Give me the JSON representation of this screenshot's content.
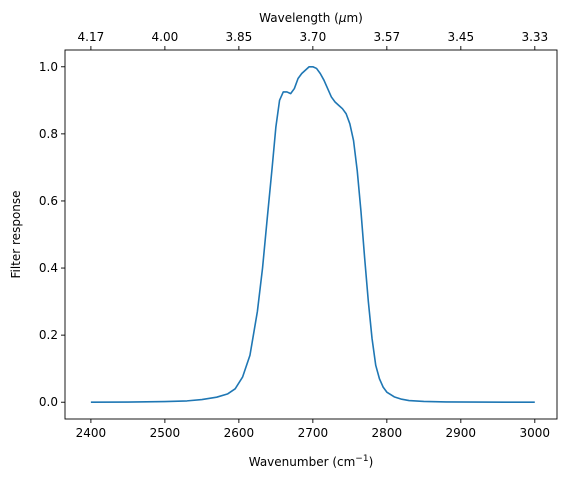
{
  "chart_data": {
    "type": "line",
    "title": "",
    "xlabel": "Wavenumber (cm",
    "xlabel_sup": "−1",
    "xlabel_end": ")",
    "ylabel": "Filter response",
    "secondary_xlabel": "Wavelength (",
    "secondary_xlabel_mu": "μ",
    "secondary_xlabel_end": "m)",
    "xlim": [
      2365,
      3030
    ],
    "ylim": [
      -0.05,
      1.05
    ],
    "grid": false,
    "legend": "none",
    "series_color": "#1f77b4",
    "x_ticks": [
      2400,
      2500,
      2600,
      2700,
      2800,
      2900,
      3000
    ],
    "x_tick_labels": [
      "2400",
      "2500",
      "2600",
      "2700",
      "2800",
      "2900",
      "3000"
    ],
    "y_ticks": [
      0.0,
      0.2,
      0.4,
      0.6,
      0.8,
      1.0
    ],
    "y_tick_labels": [
      "0.0",
      "0.2",
      "0.4",
      "0.6",
      "0.8",
      "1.0"
    ],
    "top_ticks_wavenumber": [
      2400,
      2500,
      2600,
      2700,
      2800,
      2900,
      3000
    ],
    "top_tick_labels": [
      "4.17",
      "4.00",
      "3.85",
      "3.70",
      "3.57",
      "3.45",
      "3.33"
    ],
    "series": [
      {
        "x": [
          2400,
          2450,
          2500,
          2530,
          2550,
          2570,
          2585,
          2595,
          2605,
          2615,
          2625,
          2632,
          2638,
          2645,
          2650,
          2655,
          2660,
          2665,
          2670,
          2675,
          2680,
          2685,
          2690,
          2695,
          2700,
          2705,
          2710,
          2715,
          2720,
          2725,
          2730,
          2735,
          2740,
          2745,
          2750,
          2755,
          2760,
          2765,
          2770,
          2775,
          2780,
          2785,
          2790,
          2795,
          2800,
          2810,
          2820,
          2830,
          2850,
          2880,
          2920,
          2960,
          3000
        ],
        "y": [
          0.0,
          0.0005,
          0.002,
          0.004,
          0.008,
          0.015,
          0.025,
          0.04,
          0.075,
          0.14,
          0.27,
          0.4,
          0.54,
          0.7,
          0.82,
          0.9,
          0.925,
          0.925,
          0.92,
          0.935,
          0.965,
          0.98,
          0.99,
          1.0,
          1.0,
          0.995,
          0.98,
          0.96,
          0.935,
          0.91,
          0.895,
          0.885,
          0.875,
          0.86,
          0.83,
          0.78,
          0.69,
          0.57,
          0.43,
          0.3,
          0.19,
          0.11,
          0.07,
          0.045,
          0.03,
          0.016,
          0.009,
          0.005,
          0.0025,
          0.001,
          0.0004,
          0.0002,
          0.0001
        ]
      }
    ]
  }
}
